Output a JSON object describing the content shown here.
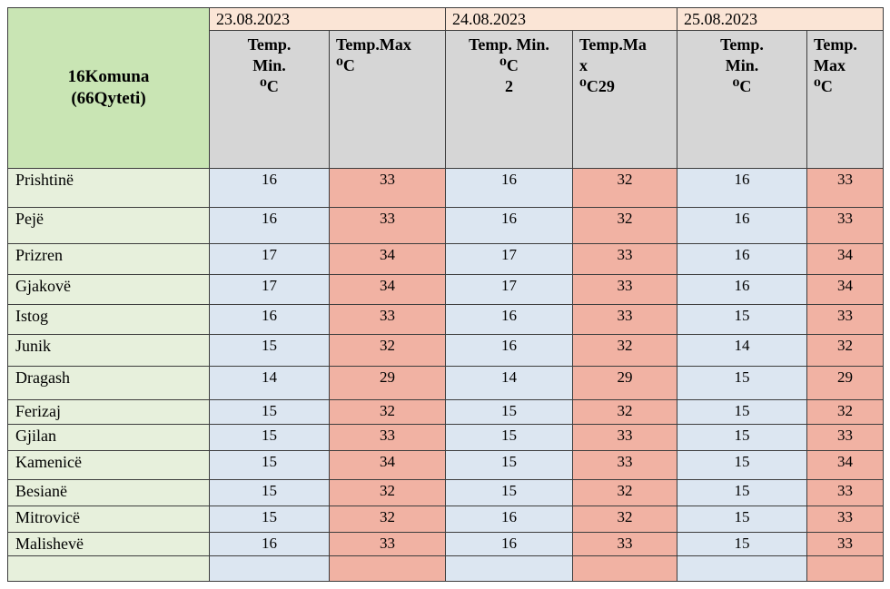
{
  "table": {
    "corner_header": "16Komuna\n(66Qyteti)",
    "date_groups": [
      {
        "date": "23.08.2023",
        "min_header": "Temp.\nMin.\n⁰C",
        "max_header": "Temp.Max\n⁰C"
      },
      {
        "date": "24.08.2023",
        "min_header": "Temp. Min.\n⁰C\n2",
        "max_header": "Temp.Ma\nx\n⁰C29"
      },
      {
        "date": "25.08.2023",
        "min_header": "Temp.\nMin.\n⁰C",
        "max_header": "Temp.\nMax\n⁰C"
      }
    ],
    "rows": [
      {
        "municipality": "Prishtinë",
        "values": [
          "16",
          "33",
          "16",
          "32",
          "16",
          "33"
        ]
      },
      {
        "municipality": "Pejë",
        "values": [
          "16",
          "33",
          "16",
          "32",
          "16",
          "33"
        ]
      },
      {
        "municipality": "Prizren",
        "values": [
          "17",
          "34",
          "17",
          "33",
          "16",
          "34"
        ]
      },
      {
        "municipality": "Gjakovë",
        "values": [
          "17",
          "34",
          "17",
          "33",
          "16",
          "34"
        ]
      },
      {
        "municipality": "Istog",
        "values": [
          "16",
          "33",
          "16",
          "33",
          "15",
          "33"
        ]
      },
      {
        "municipality": "Junik",
        "values": [
          "15",
          "32",
          "16",
          "32",
          "14",
          "32"
        ]
      },
      {
        "municipality": "Dragash",
        "values": [
          "14",
          "29",
          "14",
          "29",
          "15",
          "29"
        ]
      },
      {
        "municipality": "Ferizaj",
        "values": [
          "15",
          "32",
          "15",
          "32",
          "15",
          "32"
        ]
      },
      {
        "municipality": "Gjilan",
        "values": [
          "15",
          "33",
          "15",
          "33",
          "15",
          "33"
        ]
      },
      {
        "municipality": "Kamenicë",
        "values": [
          "15",
          "34",
          "15",
          "33",
          "15",
          "34"
        ]
      },
      {
        "municipality": "Besianë",
        "values": [
          "15",
          "32",
          "15",
          "32",
          "15",
          "33"
        ]
      },
      {
        "municipality": "Mitrovicë",
        "values": [
          "15",
          "32",
          "16",
          "32",
          "15",
          "33"
        ]
      },
      {
        "municipality": "Malishevë",
        "values": [
          "16",
          "33",
          "16",
          "33",
          "15",
          "33"
        ]
      },
      {
        "municipality": "",
        "values": [
          "",
          "",
          "",
          "",
          "",
          ""
        ]
      }
    ],
    "colors": {
      "corner_green": "#c9e5b4",
      "municipality_green": "#e7f0dc",
      "date_peach": "#fbe5d6",
      "header_gray": "#d6d6d6",
      "min_blue": "#dce6f1",
      "max_salmon": "#f1b2a3",
      "border": "#3d3d3d"
    }
  }
}
